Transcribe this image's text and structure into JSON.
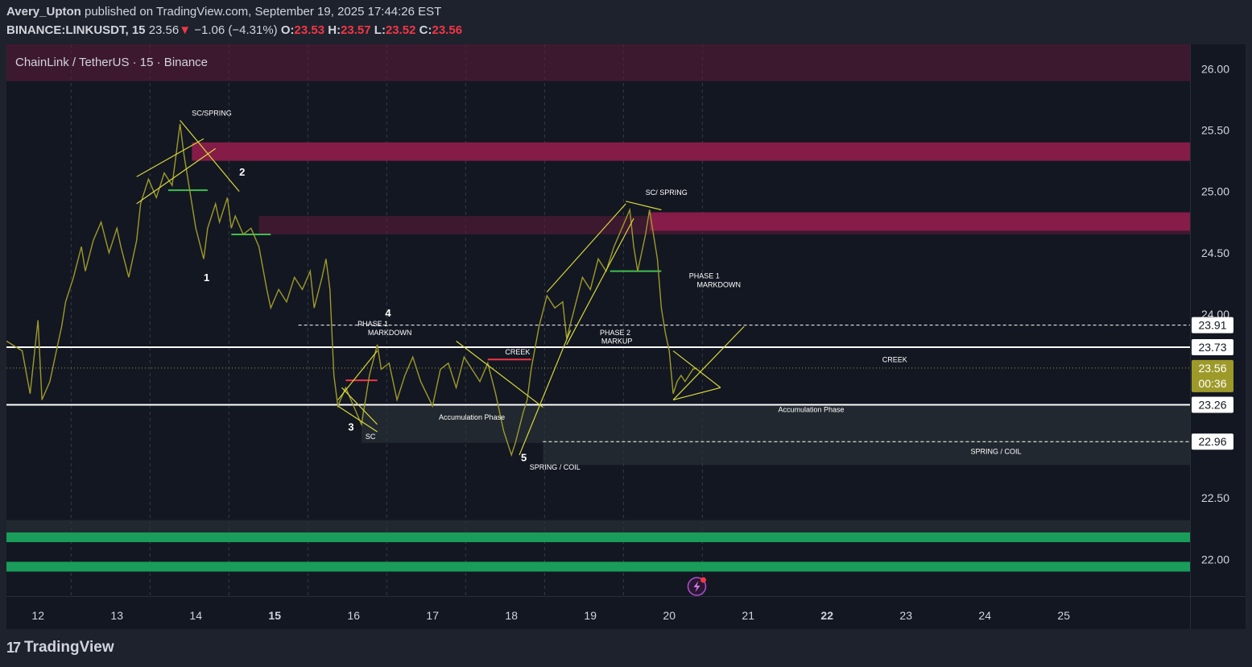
{
  "header": {
    "author": "Avery_Upton",
    "published_text": "published on TradingView.com, September 19, 2025 17:44:26 EST",
    "symbol": "BINANCE:LINKUSDT, 15",
    "last": "23.56",
    "arrow": "▼",
    "change": "−1.06 (−4.31%)",
    "o_label": "O:",
    "o": "23.53",
    "h_label": "H:",
    "h": "23.57",
    "l_label": "L:",
    "l": "23.52",
    "c_label": "C:",
    "c": "23.56"
  },
  "chart_title": "ChainLink / TetherUS · 15 · Binance",
  "footer": {
    "brand": "TradingView",
    "logo": "17"
  },
  "colors": {
    "background": "#131722",
    "frame": "#1e222d",
    "price_line": "#9d9a2a",
    "annotation": "#d8d83a",
    "supply_zone": "#9e1f55",
    "demand_zone": "#1a9c5a",
    "level_red": "#f23645",
    "level_green": "#3fbf4f"
  },
  "chart_data": {
    "type": "line",
    "title": "ChainLink / TetherUS · 15 · Binance",
    "xlabel": "",
    "ylabel": "",
    "x_ticks": [
      {
        "label": "12",
        "day": 12,
        "bold": false
      },
      {
        "label": "13",
        "day": 13,
        "bold": false
      },
      {
        "label": "14",
        "day": 14,
        "bold": false
      },
      {
        "label": "15",
        "day": 15,
        "bold": true
      },
      {
        "label": "16",
        "day": 16,
        "bold": false
      },
      {
        "label": "17",
        "day": 17,
        "bold": false
      },
      {
        "label": "18",
        "day": 18,
        "bold": false
      },
      {
        "label": "19",
        "day": 19,
        "bold": false
      },
      {
        "label": "20",
        "day": 20,
        "bold": false
      },
      {
        "label": "21",
        "day": 21,
        "bold": false
      },
      {
        "label": "22",
        "day": 22,
        "bold": true
      },
      {
        "label": "23",
        "day": 23,
        "bold": false
      },
      {
        "label": "24",
        "day": 24,
        "bold": false
      },
      {
        "label": "25",
        "day": 25,
        "bold": false
      }
    ],
    "xlim": [
      11.6,
      26.6
    ],
    "ylim": [
      21.7,
      26.2
    ],
    "y_ticks": [
      "26.00",
      "25.50",
      "25.00",
      "24.50",
      "24.00",
      "22.50",
      "22.00"
    ],
    "gridlines_x": [
      12.42,
      13.42,
      14.42,
      15.42,
      16.42,
      17.42,
      18.42,
      19.42,
      20.42
    ],
    "series": [
      {
        "name": "LINKUSDT",
        "points": [
          [
            11.6,
            23.78
          ],
          [
            11.8,
            23.7
          ],
          [
            11.9,
            23.35
          ],
          [
            12.0,
            23.95
          ],
          [
            12.05,
            23.3
          ],
          [
            12.15,
            23.45
          ],
          [
            12.25,
            23.75
          ],
          [
            12.3,
            23.9
          ],
          [
            12.35,
            24.1
          ],
          [
            12.45,
            24.3
          ],
          [
            12.55,
            24.55
          ],
          [
            12.6,
            24.35
          ],
          [
            12.7,
            24.6
          ],
          [
            12.8,
            24.75
          ],
          [
            12.9,
            24.5
          ],
          [
            13.0,
            24.7
          ],
          [
            13.05,
            24.55
          ],
          [
            13.15,
            24.3
          ],
          [
            13.25,
            24.6
          ],
          [
            13.3,
            24.9
          ],
          [
            13.4,
            25.1
          ],
          [
            13.5,
            24.95
          ],
          [
            13.6,
            25.15
          ],
          [
            13.7,
            25.05
          ],
          [
            13.75,
            25.3
          ],
          [
            13.8,
            25.55
          ],
          [
            13.85,
            25.3
          ],
          [
            13.9,
            25.1
          ],
          [
            13.95,
            24.9
          ],
          [
            14.0,
            24.7
          ],
          [
            14.1,
            24.45
          ],
          [
            14.15,
            24.7
          ],
          [
            14.25,
            24.9
          ],
          [
            14.3,
            24.75
          ],
          [
            14.4,
            24.95
          ],
          [
            14.45,
            24.7
          ],
          [
            14.5,
            24.8
          ],
          [
            14.6,
            24.65
          ],
          [
            14.7,
            24.7
          ],
          [
            14.8,
            24.55
          ],
          [
            14.9,
            24.2
          ],
          [
            14.95,
            24.05
          ],
          [
            15.05,
            24.2
          ],
          [
            15.15,
            24.1
          ],
          [
            15.25,
            24.3
          ],
          [
            15.35,
            24.2
          ],
          [
            15.45,
            24.35
          ],
          [
            15.5,
            24.05
          ],
          [
            15.6,
            24.3
          ],
          [
            15.65,
            24.45
          ],
          [
            15.7,
            24.2
          ],
          [
            15.75,
            23.5
          ],
          [
            15.8,
            23.25
          ],
          [
            15.9,
            23.4
          ],
          [
            16.0,
            23.25
          ],
          [
            16.1,
            23.1
          ],
          [
            16.2,
            23.5
          ],
          [
            16.3,
            23.75
          ],
          [
            16.35,
            23.55
          ],
          [
            16.45,
            23.6
          ],
          [
            16.55,
            23.3
          ],
          [
            16.65,
            23.5
          ],
          [
            16.75,
            23.65
          ],
          [
            16.85,
            23.45
          ],
          [
            17.0,
            23.25
          ],
          [
            17.1,
            23.55
          ],
          [
            17.2,
            23.6
          ],
          [
            17.3,
            23.4
          ],
          [
            17.4,
            23.65
          ],
          [
            17.5,
            23.55
          ],
          [
            17.6,
            23.45
          ],
          [
            17.7,
            23.6
          ],
          [
            17.8,
            23.35
          ],
          [
            17.9,
            23.05
          ],
          [
            18.0,
            22.85
          ],
          [
            18.05,
            22.95
          ],
          [
            18.15,
            23.2
          ],
          [
            18.2,
            23.3
          ],
          [
            18.25,
            23.55
          ],
          [
            18.35,
            23.9
          ],
          [
            18.45,
            24.15
          ],
          [
            18.55,
            24.05
          ],
          [
            18.65,
            24.1
          ],
          [
            18.7,
            23.8
          ],
          [
            18.8,
            24.05
          ],
          [
            18.9,
            24.3
          ],
          [
            19.0,
            24.2
          ],
          [
            19.1,
            24.45
          ],
          [
            19.2,
            24.35
          ],
          [
            19.3,
            24.55
          ],
          [
            19.4,
            24.7
          ],
          [
            19.5,
            24.85
          ],
          [
            19.55,
            24.55
          ],
          [
            19.6,
            24.35
          ],
          [
            19.7,
            24.65
          ],
          [
            19.75,
            24.85
          ],
          [
            19.85,
            24.45
          ],
          [
            19.9,
            24.05
          ],
          [
            19.95,
            23.85
          ],
          [
            20.0,
            23.7
          ],
          [
            20.05,
            23.35
          ],
          [
            20.1,
            23.45
          ],
          [
            20.15,
            23.5
          ],
          [
            20.2,
            23.45
          ],
          [
            20.3,
            23.55
          ],
          [
            20.35,
            23.56
          ]
        ]
      }
    ],
    "price_levels": [
      {
        "label": "23.91",
        "value": 23.91,
        "style": "dashed",
        "from": 15.3
      },
      {
        "label": "23.73",
        "value": 23.73,
        "style": "solid",
        "from": 11.6
      },
      {
        "label": "23.26",
        "value": 23.26,
        "style": "solid",
        "from": 11.6
      },
      {
        "label": "22.96",
        "value": 22.96,
        "style": "dashed",
        "from": 18.4
      }
    ],
    "current_price": {
      "label": "23.56",
      "value": 23.56,
      "countdown": "00:36"
    },
    "zones": [
      {
        "y": [
          25.25,
          25.4
        ],
        "x": [
          13.95,
          26.6
        ],
        "kind": "supply"
      },
      {
        "y": [
          24.65,
          24.8
        ],
        "x": [
          14.8,
          26.6
        ],
        "kind": "supply_faint"
      },
      {
        "y": [
          24.68,
          24.83
        ],
        "x": [
          19.75,
          26.6
        ],
        "kind": "supply"
      },
      {
        "y": [
          25.9,
          26.2
        ],
        "x": [
          11.6,
          26.6
        ],
        "kind": "supply_faint"
      },
      {
        "y": [
          22.95,
          23.25
        ],
        "x": [
          16.1,
          26.6
        ],
        "kind": "neutral"
      },
      {
        "y": [
          22.77,
          22.96
        ],
        "x": [
          18.4,
          26.6
        ],
        "kind": "neutral"
      },
      {
        "y": [
          22.14,
          22.22
        ],
        "x": [
          11.6,
          26.6
        ],
        "kind": "demand"
      },
      {
        "y": [
          21.9,
          21.98
        ],
        "x": [
          11.6,
          26.6
        ],
        "kind": "demand"
      },
      {
        "y": [
          22.22,
          22.32
        ],
        "x": [
          11.6,
          26.6
        ],
        "kind": "neutral"
      }
    ],
    "short_levels": [
      {
        "x": [
          13.65,
          14.15
        ],
        "y": 25.01,
        "kind": "green"
      },
      {
        "x": [
          14.45,
          14.95
        ],
        "y": 24.65,
        "kind": "green"
      },
      {
        "x": [
          19.25,
          19.9
        ],
        "y": 24.35,
        "kind": "green"
      },
      {
        "x": [
          15.9,
          16.3
        ],
        "y": 23.46,
        "kind": "red"
      },
      {
        "x": [
          17.7,
          18.25
        ],
        "y": 23.63,
        "kind": "red"
      }
    ],
    "trendlines": [
      [
        [
          13.25,
          25.12
        ],
        [
          14.1,
          25.43
        ]
      ],
      [
        [
          13.25,
          24.9
        ],
        [
          14.25,
          25.35
        ]
      ],
      [
        [
          13.8,
          25.58
        ],
        [
          14.55,
          25.0
        ]
      ],
      [
        [
          15.8,
          23.3
        ],
        [
          16.3,
          23.7
        ]
      ],
      [
        [
          15.8,
          23.25
        ],
        [
          16.3,
          23.04
        ]
      ],
      [
        [
          15.85,
          23.4
        ],
        [
          16.3,
          23.1
        ]
      ],
      [
        [
          17.3,
          23.78
        ],
        [
          18.4,
          23.24
        ]
      ],
      [
        [
          18.1,
          22.85
        ],
        [
          18.75,
          23.87
        ]
      ],
      [
        [
          18.45,
          24.18
        ],
        [
          19.45,
          24.9
        ]
      ],
      [
        [
          18.7,
          23.75
        ],
        [
          19.55,
          24.78
        ]
      ],
      [
        [
          19.45,
          24.92
        ],
        [
          19.9,
          24.85
        ]
      ],
      [
        [
          20.05,
          23.7
        ],
        [
          20.65,
          23.4
        ]
      ],
      [
        [
          20.05,
          23.3
        ],
        [
          20.95,
          23.9
        ]
      ],
      [
        [
          20.05,
          23.3
        ],
        [
          20.65,
          23.4
        ]
      ]
    ],
    "annotations": [
      {
        "text": "SC/SPRING",
        "x": 13.95,
        "y": 25.62,
        "size": 9,
        "weight": "normal"
      },
      {
        "text": "2",
        "x": 14.55,
        "y": 25.13,
        "size": 13,
        "weight": "bold"
      },
      {
        "text": "1",
        "x": 14.1,
        "y": 24.27,
        "size": 13,
        "weight": "bold"
      },
      {
        "text": "4",
        "x": 16.4,
        "y": 23.98,
        "size": 13,
        "weight": "bold"
      },
      {
        "text": "PHASE 1",
        "x": 16.05,
        "y": 23.9,
        "size": 9,
        "weight": "normal"
      },
      {
        "text": "MARKDOWN",
        "x": 16.18,
        "y": 23.83,
        "size": 9,
        "weight": "normal"
      },
      {
        "text": "3",
        "x": 15.93,
        "y": 23.05,
        "size": 13,
        "weight": "bold"
      },
      {
        "text": "SC",
        "x": 16.15,
        "y": 22.98,
        "size": 9,
        "weight": "normal"
      },
      {
        "text": "Accumulation Phase",
        "x": 17.08,
        "y": 23.14,
        "size": 9,
        "weight": "normal"
      },
      {
        "text": "CREEK",
        "x": 17.92,
        "y": 23.67,
        "size": 9,
        "weight": "normal"
      },
      {
        "text": "5",
        "x": 18.12,
        "y": 22.8,
        "size": 13,
        "weight": "bold"
      },
      {
        "text": "SPRING / COIL",
        "x": 18.23,
        "y": 22.73,
        "size": 9,
        "weight": "normal"
      },
      {
        "text": "SC/ SPRING",
        "x": 19.7,
        "y": 24.97,
        "size": 9,
        "weight": "normal"
      },
      {
        "text": "PHASE 2",
        "x": 19.12,
        "y": 23.83,
        "size": 9,
        "weight": "normal"
      },
      {
        "text": "MARKUP",
        "x": 19.14,
        "y": 23.76,
        "size": 9,
        "weight": "normal"
      },
      {
        "text": "PHASE 1",
        "x": 20.25,
        "y": 24.29,
        "size": 9,
        "weight": "normal"
      },
      {
        "text": "MARKDOWN",
        "x": 20.35,
        "y": 24.22,
        "size": 9,
        "weight": "normal"
      },
      {
        "text": "CREEK",
        "x": 22.7,
        "y": 23.61,
        "size": 9,
        "weight": "normal"
      },
      {
        "text": "Accumulation Phase",
        "x": 21.38,
        "y": 23.2,
        "size": 9,
        "weight": "normal"
      },
      {
        "text": "SPRING / COIL",
        "x": 23.82,
        "y": 22.86,
        "size": 9,
        "weight": "normal"
      }
    ],
    "legend": "none",
    "grid": true
  }
}
